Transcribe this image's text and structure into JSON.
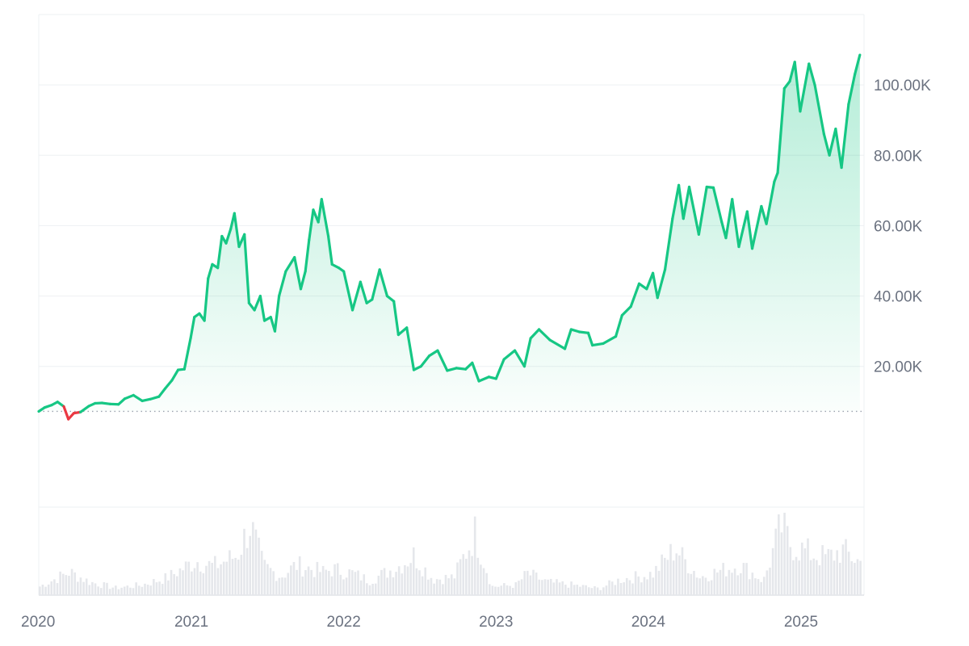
{
  "chart_data": {
    "type": "area",
    "title": "",
    "xlabel": "",
    "ylabel": "",
    "ylim": [
      -20000,
      120000
    ],
    "xlim": [
      "2020-01-01",
      "2025-06-01"
    ],
    "y_axis_position": "right",
    "y_ticks": [
      {
        "value": 20000,
        "label": "20.00K"
      },
      {
        "value": 40000,
        "label": "40.00K"
      },
      {
        "value": 60000,
        "label": "60.00K"
      },
      {
        "value": 80000,
        "label": "80.00K"
      },
      {
        "value": 100000,
        "label": "100.00K"
      }
    ],
    "x_ticks": [
      {
        "value": "2020-01-01",
        "label": "2020"
      },
      {
        "value": "2021-01-01",
        "label": "2021"
      },
      {
        "value": "2022-01-01",
        "label": "2022"
      },
      {
        "value": "2023-01-01",
        "label": "2023"
      },
      {
        "value": "2024-01-01",
        "label": "2024"
      },
      {
        "value": "2025-01-01",
        "label": "2025"
      }
    ],
    "baseline": 7200,
    "grid": true,
    "legend": "none",
    "colors": {
      "up_line": "#16c784",
      "down_line": "#ea3943",
      "up_fill": "#16c784",
      "volume": "#e5e7eb",
      "grid": "#eef0f3",
      "baseline": "#9ca3af",
      "axis_label": "#6b7280"
    },
    "series": [
      {
        "values": [
          [
            "2020-01-01",
            7200
          ],
          [
            "2020-01-15",
            8300
          ],
          [
            "2020-02-01",
            9000
          ],
          [
            "2020-02-15",
            9900
          ],
          [
            "2020-03-01",
            8600
          ],
          [
            "2020-03-12",
            5000
          ],
          [
            "2020-03-25",
            6700
          ],
          [
            "2020-04-10",
            7000
          ],
          [
            "2020-04-30",
            8700
          ],
          [
            "2020-05-15",
            9500
          ],
          [
            "2020-06-01",
            9600
          ],
          [
            "2020-06-20",
            9300
          ],
          [
            "2020-07-10",
            9200
          ],
          [
            "2020-07-25",
            10800
          ],
          [
            "2020-08-15",
            11800
          ],
          [
            "2020-09-05",
            10200
          ],
          [
            "2020-09-25",
            10700
          ],
          [
            "2020-10-15",
            11400
          ],
          [
            "2020-10-30",
            13700
          ],
          [
            "2020-11-15",
            16000
          ],
          [
            "2020-11-30",
            19000
          ],
          [
            "2020-12-15",
            19200
          ],
          [
            "2020-12-30",
            28000
          ],
          [
            "2021-01-08",
            34000
          ],
          [
            "2021-01-20",
            35000
          ],
          [
            "2021-02-01",
            33000
          ],
          [
            "2021-02-10",
            45000
          ],
          [
            "2021-02-20",
            49000
          ],
          [
            "2021-03-05",
            48000
          ],
          [
            "2021-03-15",
            57000
          ],
          [
            "2021-03-25",
            55000
          ],
          [
            "2021-04-05",
            59000
          ],
          [
            "2021-04-14",
            63500
          ],
          [
            "2021-04-25",
            54000
          ],
          [
            "2021-05-08",
            57500
          ],
          [
            "2021-05-19",
            38000
          ],
          [
            "2021-06-01",
            36000
          ],
          [
            "2021-06-15",
            40000
          ],
          [
            "2021-06-25",
            33000
          ],
          [
            "2021-07-10",
            34000
          ],
          [
            "2021-07-20",
            30000
          ],
          [
            "2021-07-30",
            40000
          ],
          [
            "2021-08-15",
            47000
          ],
          [
            "2021-09-05",
            51000
          ],
          [
            "2021-09-20",
            42000
          ],
          [
            "2021-10-01",
            47000
          ],
          [
            "2021-10-10",
            56000
          ],
          [
            "2021-10-20",
            64500
          ],
          [
            "2021-11-01",
            61000
          ],
          [
            "2021-11-09",
            67500
          ],
          [
            "2021-11-25",
            57000
          ],
          [
            "2021-12-04",
            49000
          ],
          [
            "2021-12-20",
            48000
          ],
          [
            "2022-01-01",
            47000
          ],
          [
            "2022-01-22",
            36000
          ],
          [
            "2022-02-10",
            44000
          ],
          [
            "2022-02-25",
            38000
          ],
          [
            "2022-03-10",
            39000
          ],
          [
            "2022-03-28",
            47500
          ],
          [
            "2022-04-15",
            40000
          ],
          [
            "2022-05-01",
            38500
          ],
          [
            "2022-05-12",
            29000
          ],
          [
            "2022-06-01",
            31000
          ],
          [
            "2022-06-18",
            19000
          ],
          [
            "2022-07-05",
            20000
          ],
          [
            "2022-07-25",
            23000
          ],
          [
            "2022-08-14",
            24500
          ],
          [
            "2022-09-06",
            18800
          ],
          [
            "2022-09-28",
            19500
          ],
          [
            "2022-10-20",
            19200
          ],
          [
            "2022-11-05",
            21000
          ],
          [
            "2022-11-21",
            15800
          ],
          [
            "2022-12-15",
            17000
          ],
          [
            "2023-01-01",
            16500
          ],
          [
            "2023-01-20",
            22000
          ],
          [
            "2023-02-15",
            24500
          ],
          [
            "2023-03-10",
            20000
          ],
          [
            "2023-03-25",
            28000
          ],
          [
            "2023-04-14",
            30500
          ],
          [
            "2023-05-10",
            27500
          ],
          [
            "2023-06-15",
            25000
          ],
          [
            "2023-06-30",
            30500
          ],
          [
            "2023-07-20",
            29800
          ],
          [
            "2023-08-10",
            29500
          ],
          [
            "2023-08-20",
            26000
          ],
          [
            "2023-09-15",
            26500
          ],
          [
            "2023-10-15",
            28500
          ],
          [
            "2023-10-30",
            34500
          ],
          [
            "2023-11-20",
            37000
          ],
          [
            "2023-12-10",
            43500
          ],
          [
            "2023-12-28",
            42000
          ],
          [
            "2024-01-12",
            46500
          ],
          [
            "2024-01-23",
            39500
          ],
          [
            "2024-02-10",
            47500
          ],
          [
            "2024-02-28",
            62000
          ],
          [
            "2024-03-14",
            71500
          ],
          [
            "2024-03-25",
            62000
          ],
          [
            "2024-04-08",
            71000
          ],
          [
            "2024-04-20",
            64000
          ],
          [
            "2024-05-01",
            57500
          ],
          [
            "2024-05-20",
            71000
          ],
          [
            "2024-06-05",
            70800
          ],
          [
            "2024-06-25",
            61000
          ],
          [
            "2024-07-05",
            56500
          ],
          [
            "2024-07-20",
            67500
          ],
          [
            "2024-08-05",
            54000
          ],
          [
            "2024-08-25",
            64000
          ],
          [
            "2024-09-06",
            53500
          ],
          [
            "2024-09-28",
            65500
          ],
          [
            "2024-10-10",
            60500
          ],
          [
            "2024-10-29",
            72500
          ],
          [
            "2024-11-06",
            75000
          ],
          [
            "2024-11-22",
            99000
          ],
          [
            "2024-12-05",
            101000
          ],
          [
            "2024-12-17",
            106500
          ],
          [
            "2024-12-30",
            92500
          ],
          [
            "2025-01-20",
            106000
          ],
          [
            "2025-02-03",
            100000
          ],
          [
            "2025-02-25",
            86000
          ],
          [
            "2025-03-10",
            80000
          ],
          [
            "2025-03-25",
            87500
          ],
          [
            "2025-04-08",
            76500
          ],
          [
            "2025-04-25",
            94500
          ],
          [
            "2025-05-10",
            103000
          ],
          [
            "2025-05-22",
            108500
          ]
        ]
      }
    ],
    "volume": {
      "max": 100,
      "values": [
        [
          "2020-01-01",
          12
        ],
        [
          "2020-03-12",
          32
        ],
        [
          "2020-05-01",
          18
        ],
        [
          "2020-07-01",
          10
        ],
        [
          "2020-09-01",
          14
        ],
        [
          "2020-11-01",
          24
        ],
        [
          "2021-01-10",
          48
        ],
        [
          "2021-02-20",
          40
        ],
        [
          "2021-04-18",
          55
        ],
        [
          "2021-05-19",
          98
        ],
        [
          "2021-06-20",
          40
        ],
        [
          "2021-08-01",
          26
        ],
        [
          "2021-09-07",
          42
        ],
        [
          "2021-11-10",
          32
        ],
        [
          "2021-12-04",
          36
        ],
        [
          "2022-01-22",
          30
        ],
        [
          "2022-03-01",
          20
        ],
        [
          "2022-05-10",
          40
        ],
        [
          "2022-06-15",
          55
        ],
        [
          "2022-08-01",
          22
        ],
        [
          "2022-09-20",
          25
        ],
        [
          "2022-11-09",
          86
        ],
        [
          "2022-12-20",
          12
        ],
        [
          "2023-02-15",
          14
        ],
        [
          "2023-03-15",
          30
        ],
        [
          "2023-05-01",
          18
        ],
        [
          "2023-07-01",
          14
        ],
        [
          "2023-09-01",
          9
        ],
        [
          "2023-10-25",
          22
        ],
        [
          "2023-12-10",
          26
        ],
        [
          "2024-01-10",
          30
        ],
        [
          "2024-03-05",
          66
        ],
        [
          "2024-03-20",
          52
        ],
        [
          "2024-05-01",
          25
        ],
        [
          "2024-08-05",
          42
        ],
        [
          "2024-10-01",
          20
        ],
        [
          "2024-11-12",
          96
        ],
        [
          "2024-12-05",
          70
        ],
        [
          "2025-01-20",
          58
        ],
        [
          "2025-03-01",
          52
        ],
        [
          "2025-04-07",
          62
        ],
        [
          "2025-05-22",
          45
        ]
      ]
    }
  }
}
